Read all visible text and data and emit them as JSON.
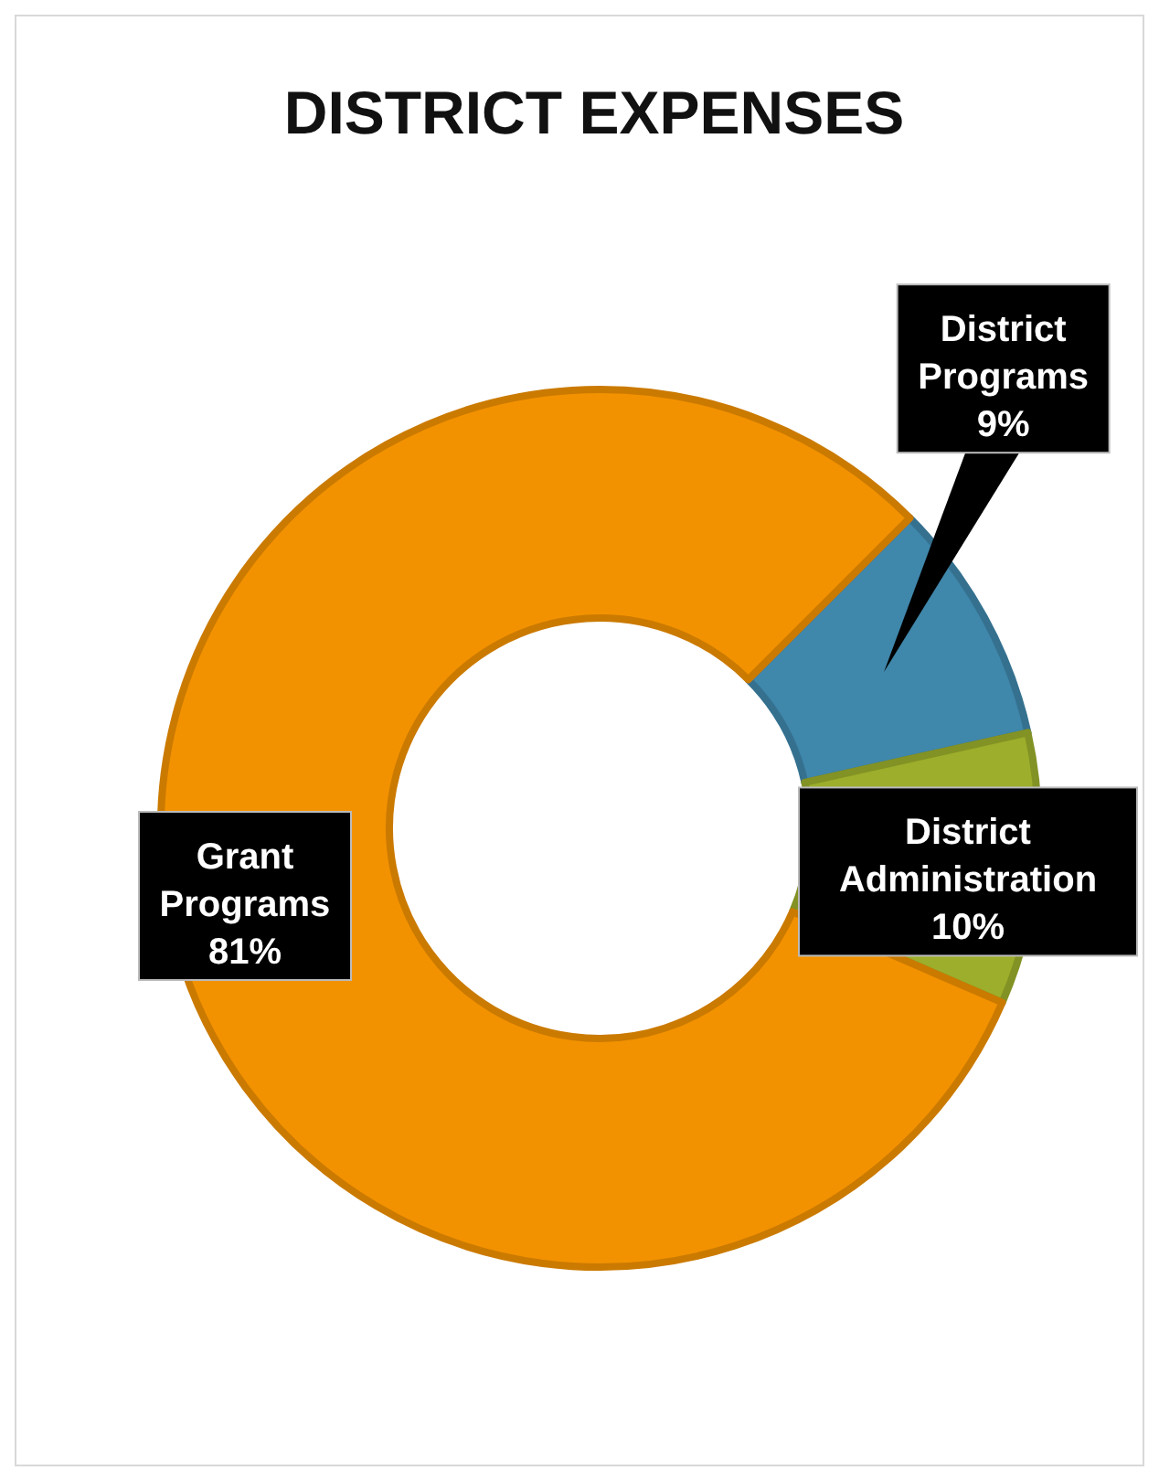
{
  "chart_data": {
    "type": "donut",
    "title": "DISTRICT EXPENSES",
    "categories": [
      "District Programs",
      "District Administration",
      "Grant Programs"
    ],
    "values": [
      9,
      10,
      81
    ],
    "colors": [
      "#3f87ab",
      "#9cae2b",
      "#f39200"
    ],
    "value_labels": [
      "9%",
      "10%",
      "81%"
    ]
  }
}
